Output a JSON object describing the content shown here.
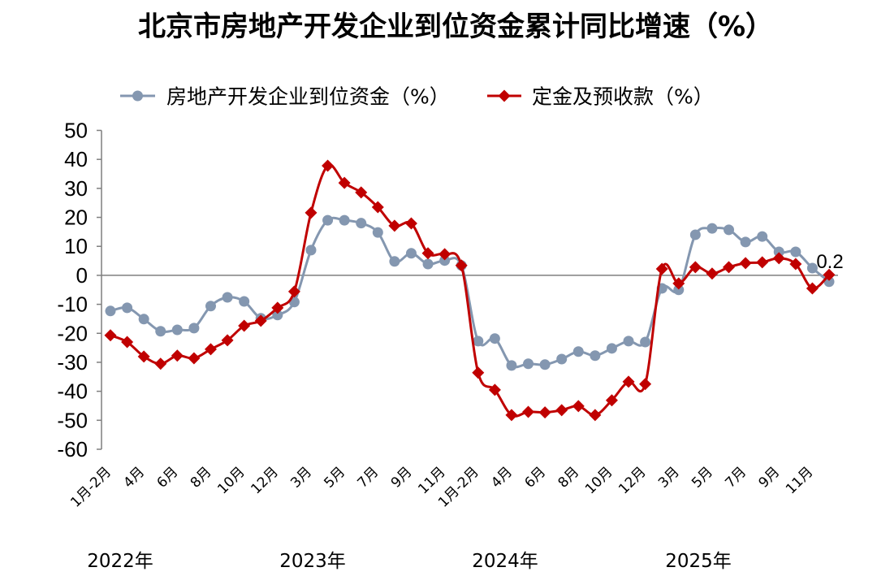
{
  "chart_data": {
    "type": "line",
    "title": "北京市房地产开发企业到位资金累计同比增速（%）",
    "categories": [
      "1月-2月",
      "",
      "4月",
      "",
      "6月",
      "",
      "8月",
      "",
      "10月",
      "",
      "12月",
      "",
      "3月",
      "",
      "5月",
      "",
      "7月",
      "",
      "9月",
      "",
      "11月",
      "",
      "1月-2月",
      "",
      "4月",
      "",
      "6月",
      "",
      "8月",
      "",
      "10月",
      "",
      "12月",
      "",
      "3月",
      "",
      "5月",
      "",
      "7月",
      "",
      "9月",
      "",
      "11月",
      ""
    ],
    "year_labels": [
      "2022年",
      "2023年",
      "2024年",
      "2025年"
    ],
    "ylim": [
      -60,
      50
    ],
    "yticks": [
      50,
      40,
      30,
      20,
      10,
      0,
      -10,
      -20,
      -30,
      -40,
      -50,
      -60
    ],
    "grid": false,
    "legend_position": "top",
    "series": [
      {
        "name": "房地产开发企业到位资金（%）",
        "color": "#8497b0",
        "marker": "circle",
        "smooth": true,
        "values": [
          -12.3,
          -11.2,
          -15.1,
          -19.3,
          -18.8,
          -18.2,
          -10.6,
          -7.6,
          -9.0,
          -14.8,
          -13.7,
          -9.2,
          8.7,
          19.0,
          19.0,
          18.0,
          14.8,
          4.8,
          7.6,
          3.9,
          5.1,
          3.4,
          -22.7,
          -21.8,
          -31.1,
          -30.5,
          -30.8,
          -28.9,
          -26.3,
          -27.7,
          -25.2,
          -22.7,
          -23.0,
          -4.5,
          -5.0,
          14.0,
          16.2,
          15.7,
          11.5,
          13.4,
          8.1,
          8.1,
          2.5,
          -2.2
        ]
      },
      {
        "name": "定金及预收款（%）",
        "color": "#c00000",
        "marker": "diamond",
        "smooth": true,
        "values": [
          -20.7,
          -23.0,
          -28.0,
          -30.5,
          -27.7,
          -28.6,
          -25.5,
          -22.4,
          -17.4,
          -15.7,
          -11.2,
          -5.6,
          21.6,
          37.8,
          31.9,
          28.6,
          23.5,
          17.1,
          17.9,
          7.6,
          7.3,
          3.4,
          -33.6,
          -39.5,
          -48.2,
          -47.1,
          -47.3,
          -46.5,
          -45.1,
          -48.2,
          -43.1,
          -36.7,
          -37.5,
          2.2,
          -2.8,
          2.8,
          0.6,
          2.8,
          4.2,
          4.5,
          5.9,
          3.9,
          -4.5,
          0.2
        ]
      }
    ],
    "data_labels": [
      {
        "series": 1,
        "index": 43,
        "text": "0.2"
      }
    ]
  }
}
